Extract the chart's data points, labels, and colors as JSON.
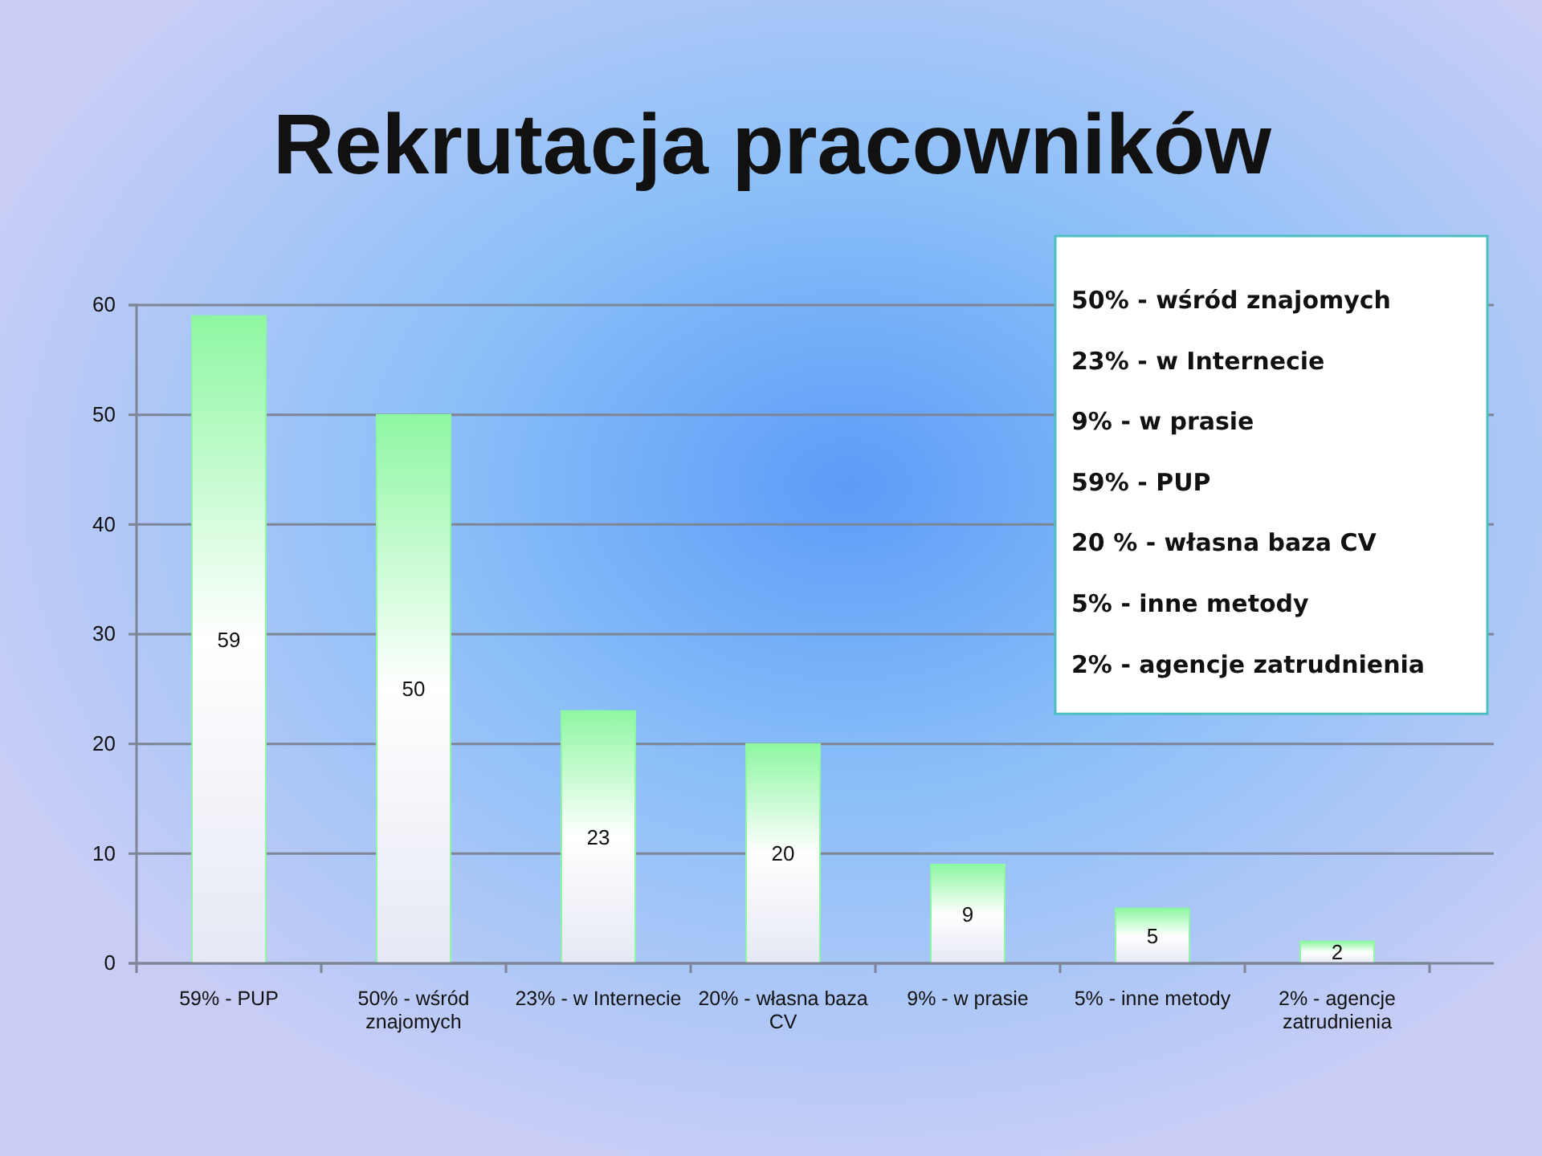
{
  "chart_data": {
    "type": "bar",
    "title": "Rekrutacja pracowników",
    "categories": [
      "59% - PUP",
      "50% - wśród znajomych",
      "23% - w Internecie",
      "20% - własna baza CV",
      "9% - w prasie",
      "5% - inne metody",
      "2% - agencje zatrudnienia"
    ],
    "values": [
      59,
      50,
      23,
      20,
      9,
      5,
      2
    ],
    "color": "#8ef7a2",
    "ylim": [
      0,
      60
    ],
    "yticks": [
      0,
      10,
      20,
      30,
      40,
      50,
      60
    ],
    "grid": "y",
    "data_labels": true,
    "annotations": [
      "50% - wśród znajomych",
      "23% - w Internecie",
      "9% - w prasie",
      "59% - PUP",
      "20 % - własna baza CV",
      "5% - inne metody",
      "2% - agencje zatrudnienia"
    ]
  }
}
